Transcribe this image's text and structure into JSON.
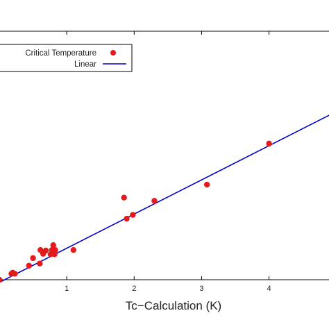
{
  "chart_data": {
    "type": "scatter",
    "xlabel": "Tc−Calculation (K)",
    "ylabel": "",
    "title": "",
    "xlim": [
      0,
      4.9
    ],
    "ylim": [
      0,
      4.6
    ],
    "x_ticks": [
      1,
      2,
      3,
      4
    ],
    "x_tick_labels": [
      "1",
      "2",
      "3",
      "4"
    ],
    "legend_position": "top-left",
    "series": [
      {
        "name": "Critical Temperature",
        "kind": "scatter",
        "color": "#e41a1c",
        "points": [
          {
            "x": 0.0,
            "y": 0.0
          },
          {
            "x": 0.18,
            "y": 0.11
          },
          {
            "x": 0.2,
            "y": 0.13
          },
          {
            "x": 0.23,
            "y": 0.11
          },
          {
            "x": 0.5,
            "y": 0.4
          },
          {
            "x": 0.44,
            "y": 0.26
          },
          {
            "x": 0.6,
            "y": 0.3
          },
          {
            "x": 0.61,
            "y": 0.55
          },
          {
            "x": 0.65,
            "y": 0.48
          },
          {
            "x": 0.69,
            "y": 0.54
          },
          {
            "x": 0.76,
            "y": 0.47
          },
          {
            "x": 0.78,
            "y": 0.55
          },
          {
            "x": 0.8,
            "y": 0.64
          },
          {
            "x": 0.82,
            "y": 0.47
          },
          {
            "x": 0.83,
            "y": 0.55
          },
          {
            "x": 1.1,
            "y": 0.55
          },
          {
            "x": 1.85,
            "y": 1.52
          },
          {
            "x": 1.89,
            "y": 1.13
          },
          {
            "x": 1.98,
            "y": 1.2
          },
          {
            "x": 2.3,
            "y": 1.46
          },
          {
            "x": 3.08,
            "y": 1.76
          },
          {
            "x": 4.0,
            "y": 2.52
          }
        ]
      },
      {
        "name": "Linear",
        "kind": "line",
        "color": "#0000c8",
        "x": [
          0.0,
          4.9
        ],
        "y": [
          -0.05,
          3.05
        ]
      }
    ]
  }
}
